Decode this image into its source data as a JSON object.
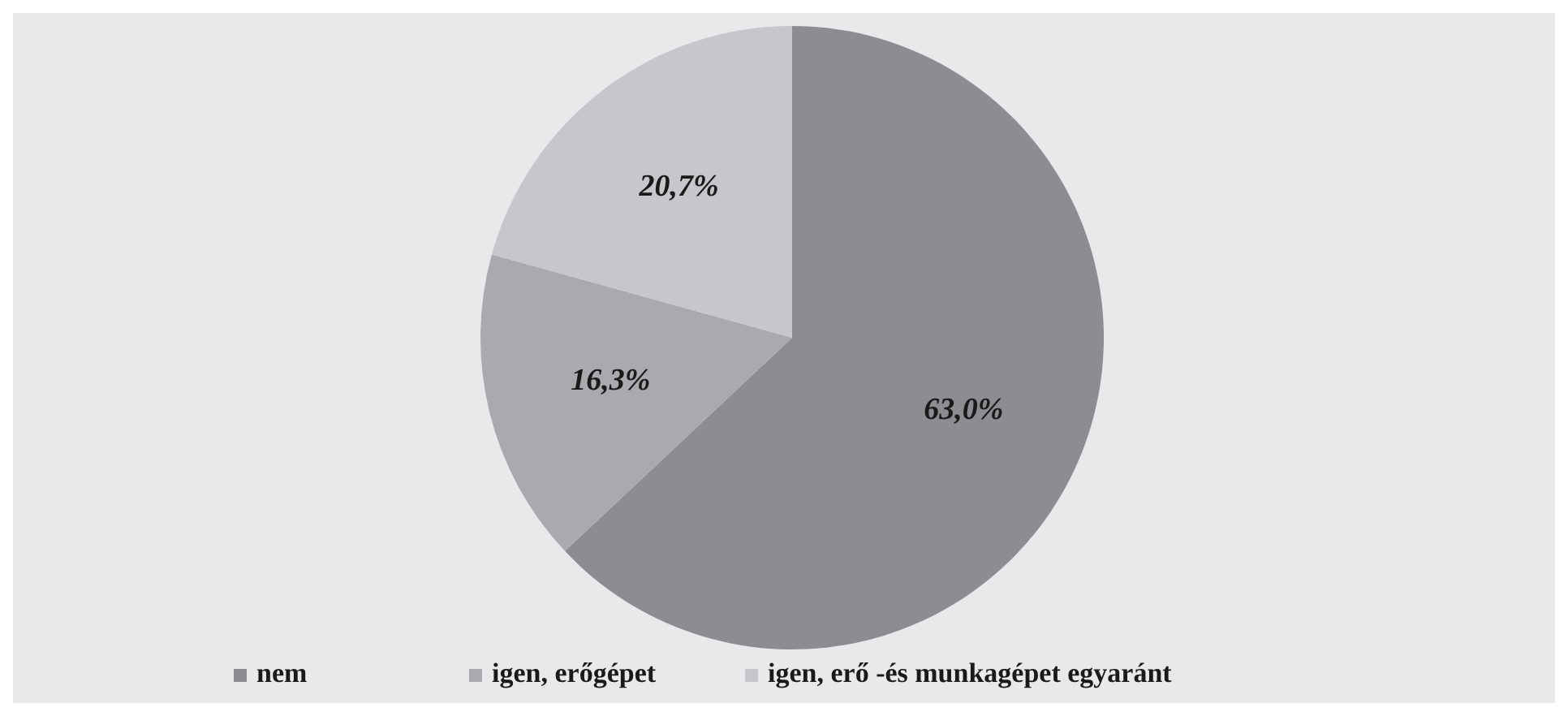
{
  "chart_data": {
    "type": "pie",
    "categories": [
      "nem",
      "igen, erőgépet",
      "igen, erő -és munkagépet egyaránt"
    ],
    "values": [
      63.0,
      16.3,
      20.7
    ],
    "value_labels": [
      "63,0%",
      "16,3%",
      "20,7%"
    ],
    "colors": [
      "#8c8c91",
      "#a9a9ae",
      "#c6c6cb"
    ],
    "legend": "bottom"
  }
}
